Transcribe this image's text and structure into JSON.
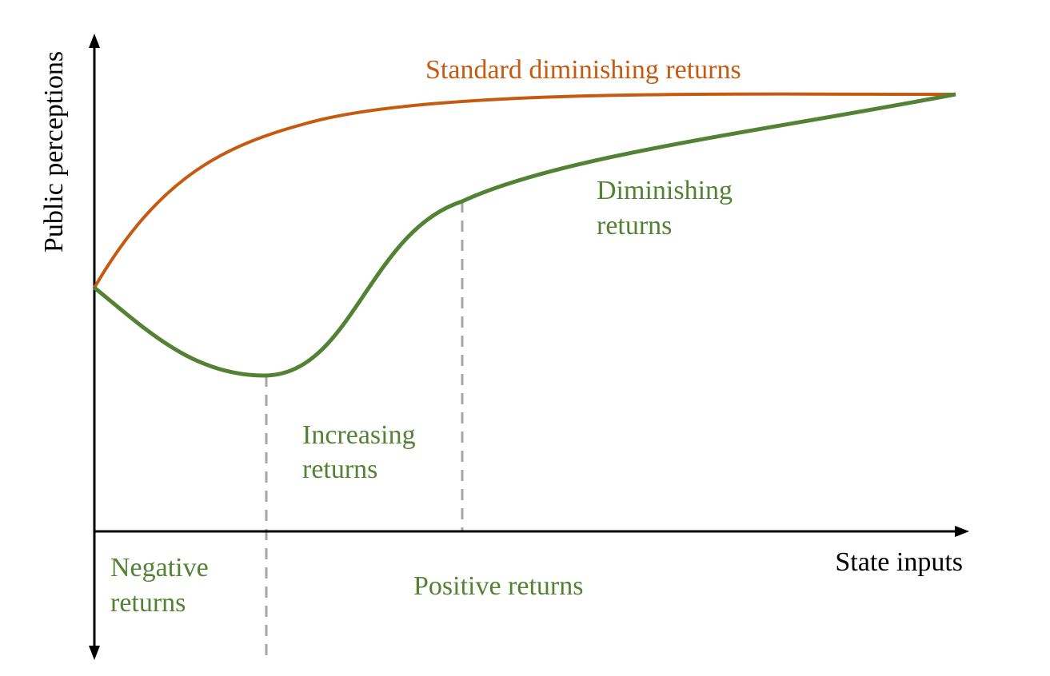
{
  "colors": {
    "standard_curve": "#c55a11",
    "green_curve": "#548235",
    "axis": "#000000",
    "divider": "#a6a6a6",
    "background": "#ffffff"
  },
  "axes": {
    "y_label": "Public perceptions",
    "x_label": "State inputs"
  },
  "curves": {
    "standard_label": "Standard diminishing returns",
    "diminishing_label_line1": "Diminishing",
    "diminishing_label_line2": "returns",
    "increasing_label_line1": "Increasing",
    "increasing_label_line2": "returns"
  },
  "regions": {
    "negative_line1": "Negative",
    "negative_line2": "returns",
    "positive": "Positive returns"
  }
}
